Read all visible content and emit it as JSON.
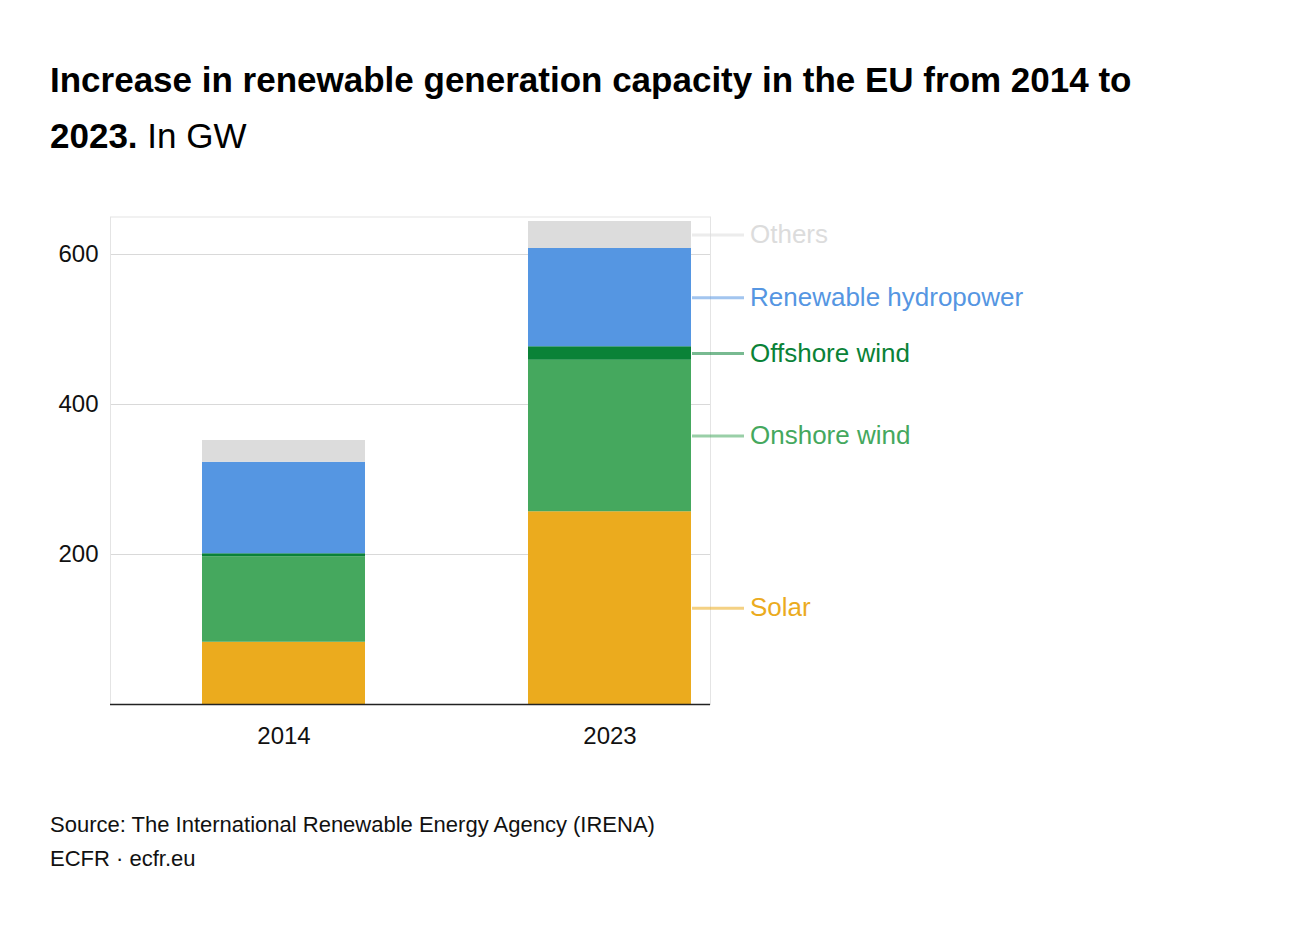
{
  "chart_data": {
    "type": "bar",
    "stacked": true,
    "title": "Increase in renewable generation capacity in the EU from 2014 to 2023.",
    "subtitle": "In GW",
    "source": "Source: The International Renewable Energy Agency (IRENA)",
    "credit": "ECFR · ecfr.eu",
    "categories": [
      "2014",
      "2023"
    ],
    "series": [
      {
        "name": "Solar",
        "color": "#ebab1e",
        "values": [
          83,
          257
        ]
      },
      {
        "name": "Onshore wind",
        "color": "#45a85e",
        "values": [
          114,
          202
        ]
      },
      {
        "name": "Offshore wind",
        "color": "#0a8237",
        "values": [
          4,
          18
        ]
      },
      {
        "name": "Renewable hydropower",
        "color": "#5596e2",
        "values": [
          122,
          131
        ]
      },
      {
        "name": "Others",
        "color": "#dcdcdc",
        "values": [
          29,
          36
        ]
      }
    ],
    "ylim": [
      0,
      650
    ],
    "yticks": [
      200,
      400,
      600
    ],
    "grid": true
  }
}
